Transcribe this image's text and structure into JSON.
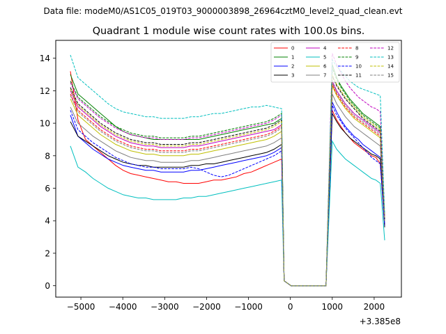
{
  "header": {
    "data_file": "Data file: modeM0/AS1C05_019T03_9000003898_26964cztM0_level2_quad_clean.evt"
  },
  "chart_data": {
    "type": "line",
    "title": "Quadrant 1 module wise count rates with 100.0s bins.",
    "xlabel": "",
    "ylabel": "",
    "x_offset_label": "+3.385e8",
    "xlim": [
      -5600,
      2650
    ],
    "ylim": [
      -0.7,
      15.1
    ],
    "xticks": [
      -5000,
      -4000,
      -3000,
      -2000,
      -1000,
      0,
      1000,
      2000
    ],
    "xtick_labels": [
      "−5000",
      "−4000",
      "−3000",
      "−2000",
      "−1000",
      "0",
      "1000",
      "2000"
    ],
    "yticks": [
      0,
      2,
      4,
      6,
      8,
      10,
      12,
      14
    ],
    "ytick_labels": [
      "0",
      "2",
      "4",
      "6",
      "8",
      "10",
      "12",
      "14"
    ],
    "grid": false,
    "legend_position": "top-right",
    "series": [
      {
        "name": "0",
        "color": "#ff0000",
        "dash": "solid",
        "pre": [
          13.2,
          10.2,
          9.0,
          8.6,
          8.2,
          7.8,
          7.4,
          7.1,
          6.9,
          6.8,
          6.7,
          6.6,
          6.5,
          6.4,
          6.4,
          6.3,
          6.3,
          6.3,
          6.4,
          6.5,
          6.5,
          6.6,
          6.7,
          6.9,
          7.0,
          7.2,
          7.4,
          7.6,
          7.8
        ],
        "post": [
          10.8,
          10.2,
          9.8,
          9.4,
          9.1,
          8.8,
          8.6,
          8.4,
          8.2,
          8.0,
          7.9,
          7.5,
          3.7
        ]
      },
      {
        "name": "1",
        "color": "#008000",
        "dash": "solid",
        "pre": [
          13.0,
          11.8,
          11.4,
          11.0,
          10.6,
          10.2,
          9.8,
          9.5,
          9.3,
          9.2,
          9.1,
          9.0,
          9.0,
          9.0,
          9.0,
          9.0,
          9.0,
          9.0,
          9.1,
          9.2,
          9.3,
          9.4,
          9.5,
          9.6,
          9.7,
          9.8,
          9.9,
          10.0,
          10.3
        ],
        "post": [
          13.6,
          12.8,
          12.3,
          11.9,
          11.5,
          11.2,
          10.9,
          10.6,
          10.4,
          10.2,
          10.0,
          9.8,
          4.2
        ]
      },
      {
        "name": "2",
        "color": "#0000ff",
        "dash": "solid",
        "pre": [
          10.5,
          9.2,
          8.8,
          8.4,
          8.1,
          7.8,
          7.6,
          7.4,
          7.3,
          7.2,
          7.1,
          7.1,
          7.0,
          7.0,
          7.0,
          7.0,
          7.1,
          7.1,
          7.2,
          7.3,
          7.4,
          7.5,
          7.6,
          7.7,
          7.8,
          7.9,
          8.0,
          8.2,
          8.5
        ],
        "post": [
          11.3,
          10.7,
          10.2,
          9.8,
          9.5,
          9.2,
          9.0,
          8.7,
          8.5,
          8.3,
          8.1,
          7.9,
          3.8
        ]
      },
      {
        "name": "3",
        "color": "#000000",
        "dash": "solid",
        "pre": [
          10.1,
          9.2,
          8.9,
          8.6,
          8.3,
          8.0,
          7.8,
          7.6,
          7.5,
          7.4,
          7.4,
          7.3,
          7.3,
          7.3,
          7.3,
          7.3,
          7.4,
          7.4,
          7.5,
          7.5,
          7.6,
          7.7,
          7.8,
          7.9,
          8.0,
          8.1,
          8.2,
          8.4,
          8.7
        ],
        "post": [
          10.6,
          10.1,
          9.7,
          9.4,
          9.1,
          8.9,
          8.7,
          8.5,
          8.3,
          8.1,
          8.0,
          7.8,
          3.6
        ]
      },
      {
        "name": "4",
        "color": "#bf00bf",
        "dash": "solid",
        "pre": [
          12.0,
          11.0,
          10.6,
          10.2,
          9.8,
          9.5,
          9.2,
          9.0,
          8.8,
          8.7,
          8.6,
          8.6,
          8.5,
          8.5,
          8.5,
          8.5,
          8.6,
          8.6,
          8.7,
          8.8,
          8.9,
          9.0,
          9.1,
          9.2,
          9.3,
          9.4,
          9.5,
          9.6,
          9.9
        ],
        "post": [
          12.6,
          12.0,
          11.6,
          11.2,
          10.9,
          10.6,
          10.4,
          10.2,
          10.0,
          9.8,
          9.6,
          9.4,
          4.1
        ]
      },
      {
        "name": "5",
        "color": "#00bfbf",
        "dash": "solid",
        "pre": [
          8.6,
          7.3,
          7.0,
          6.6,
          6.3,
          6.0,
          5.8,
          5.6,
          5.5,
          5.4,
          5.4,
          5.3,
          5.3,
          5.3,
          5.3,
          5.4,
          5.4,
          5.5,
          5.5,
          5.6,
          5.7,
          5.8,
          5.9,
          6.0,
          6.1,
          6.2,
          6.3,
          6.4,
          6.5
        ],
        "post": [
          8.9,
          8.4,
          8.1,
          7.8,
          7.6,
          7.4,
          7.2,
          7.0,
          6.8,
          6.6,
          6.5,
          6.3,
          2.8
        ]
      },
      {
        "name": "6",
        "color": "#bfbf00",
        "dash": "solid",
        "pre": [
          11.5,
          10.5,
          10.1,
          9.7,
          9.3,
          9.0,
          8.7,
          8.5,
          8.3,
          8.2,
          8.1,
          8.1,
          8.0,
          8.0,
          8.0,
          8.0,
          8.1,
          8.1,
          8.2,
          8.3,
          8.4,
          8.5,
          8.6,
          8.7,
          8.8,
          8.9,
          9.0,
          9.2,
          9.5
        ],
        "post": [
          12.3,
          11.7,
          11.3,
          10.9,
          10.6,
          10.3,
          10.1,
          9.9,
          9.7,
          9.5,
          9.3,
          9.1,
          4.0
        ]
      },
      {
        "name": "7",
        "color": "#7f7f7f",
        "dash": "solid",
        "pre": [
          11.0,
          10.0,
          9.6,
          9.2,
          8.9,
          8.6,
          8.3,
          8.1,
          7.9,
          7.8,
          7.7,
          7.7,
          7.6,
          7.6,
          7.6,
          7.6,
          7.7,
          7.7,
          7.8,
          7.9,
          8.0,
          8.1,
          8.2,
          8.3,
          8.4,
          8.5,
          8.6,
          8.8,
          9.1
        ],
        "post": [
          11.8,
          11.2,
          10.8,
          10.4,
          10.1,
          9.8,
          9.6,
          9.4,
          9.2,
          9.0,
          8.8,
          8.6,
          3.9
        ]
      },
      {
        "name": "8",
        "color": "#ff0000",
        "dash": "dashed",
        "pre": [
          11.8,
          10.8,
          10.4,
          10.0,
          9.6,
          9.3,
          9.0,
          8.8,
          8.6,
          8.5,
          8.4,
          8.4,
          8.3,
          8.3,
          8.3,
          8.3,
          8.4,
          8.4,
          8.5,
          8.6,
          8.7,
          8.8,
          8.9,
          9.0,
          9.1,
          9.2,
          9.3,
          9.5,
          9.8
        ],
        "post": [
          12.4,
          11.8,
          11.4,
          11.0,
          10.7,
          10.4,
          10.2,
          10.0,
          9.8,
          9.6,
          9.4,
          9.2,
          4.1
        ]
      },
      {
        "name": "9",
        "color": "#008000",
        "dash": "dashed",
        "pre": [
          12.6,
          11.6,
          11.2,
          10.8,
          10.4,
          10.1,
          9.8,
          9.6,
          9.4,
          9.3,
          9.2,
          9.2,
          9.1,
          9.1,
          9.1,
          9.1,
          9.2,
          9.2,
          9.3,
          9.4,
          9.5,
          9.6,
          9.7,
          9.8,
          9.9,
          10.0,
          10.1,
          10.3,
          10.6
        ],
        "post": [
          13.4,
          12.7,
          12.2,
          11.8,
          11.4,
          11.1,
          10.8,
          10.5,
          10.3,
          10.1,
          9.9,
          9.7,
          4.2
        ]
      },
      {
        "name": "10",
        "color": "#0000ff",
        "dash": "dashed",
        "pre": [
          10.8,
          9.6,
          9.2,
          8.8,
          8.5,
          8.2,
          7.9,
          7.7,
          7.5,
          7.4,
          7.3,
          7.3,
          7.2,
          7.2,
          7.2,
          7.2,
          7.3,
          7.2,
          7.0,
          6.8,
          6.7,
          6.8,
          7.0,
          7.2,
          7.4,
          7.6,
          7.8,
          8.0,
          8.3
        ],
        "post": [
          11.1,
          10.5,
          10.1,
          9.7,
          9.4,
          9.1,
          8.8,
          8.5,
          8.2,
          7.9,
          7.7,
          7.5,
          3.7
        ]
      },
      {
        "name": "11",
        "color": "#000000",
        "dash": "dashed",
        "pre": [
          12.2,
          11.2,
          10.8,
          10.4,
          10.0,
          9.7,
          9.4,
          9.2,
          9.0,
          8.9,
          8.8,
          8.8,
          8.7,
          8.7,
          8.7,
          8.7,
          8.8,
          8.8,
          8.9,
          9.0,
          9.1,
          9.2,
          9.3,
          9.4,
          9.5,
          9.6,
          9.7,
          9.9,
          10.2
        ],
        "post": [
          12.9,
          12.3,
          11.9,
          11.5,
          11.2,
          10.9,
          10.6,
          10.3,
          10.1,
          9.9,
          9.7,
          9.5,
          4.1
        ]
      },
      {
        "name": "12",
        "color": "#bf00bf",
        "dash": "dashed",
        "pre": [
          12.5,
          11.5,
          11.1,
          10.7,
          10.3,
          10.0,
          9.7,
          9.5,
          9.3,
          9.2,
          9.1,
          9.1,
          9.0,
          9.0,
          9.0,
          9.0,
          9.1,
          9.1,
          9.2,
          9.3,
          9.4,
          9.5,
          9.6,
          9.7,
          9.8,
          9.9,
          10.0,
          10.2,
          10.5
        ],
        "post": [
          14.3,
          13.6,
          13.1,
          12.6,
          12.2,
          11.9,
          11.6,
          11.4,
          11.2,
          11.0,
          10.9,
          10.7,
          4.3
        ]
      },
      {
        "name": "13",
        "color": "#00bfbf",
        "dash": "dashed",
        "pre": [
          14.2,
          12.8,
          12.4,
          12.0,
          11.6,
          11.2,
          10.9,
          10.7,
          10.6,
          10.5,
          10.4,
          10.4,
          10.3,
          10.3,
          10.3,
          10.3,
          10.4,
          10.4,
          10.5,
          10.6,
          10.6,
          10.7,
          10.8,
          10.9,
          11.0,
          11.0,
          11.1,
          11.0,
          10.9
        ],
        "post": [
          13.9,
          13.5,
          13.2,
          12.9,
          12.6,
          12.4,
          12.2,
          12.1,
          12.0,
          11.9,
          11.8,
          11.7,
          4.4
        ]
      },
      {
        "name": "14",
        "color": "#bfbf00",
        "dash": "dashed",
        "pre": [
          12.1,
          11.1,
          10.7,
          10.3,
          9.9,
          9.6,
          9.3,
          9.1,
          8.9,
          8.8,
          8.7,
          8.7,
          8.6,
          8.6,
          8.6,
          8.6,
          8.7,
          8.7,
          8.8,
          8.9,
          9.0,
          9.1,
          9.2,
          9.3,
          9.4,
          9.5,
          9.6,
          9.8,
          10.1
        ],
        "post": [
          13.0,
          12.4,
          12.0,
          11.6,
          11.3,
          11.0,
          10.7,
          10.4,
          10.2,
          10.0,
          9.8,
          9.6,
          4.2
        ]
      },
      {
        "name": "15",
        "color": "#7f7f7f",
        "dash": "dashed",
        "pre": [
          11.7,
          10.7,
          10.3,
          9.9,
          9.5,
          9.2,
          8.9,
          8.7,
          8.5,
          8.4,
          8.3,
          8.3,
          8.2,
          8.2,
          8.2,
          8.2,
          8.3,
          8.3,
          8.4,
          8.5,
          8.6,
          8.7,
          8.8,
          8.9,
          9.0,
          9.1,
          9.2,
          9.4,
          9.7
        ],
        "post": [
          12.5,
          11.9,
          11.5,
          11.1,
          10.8,
          10.5,
          10.3,
          10.1,
          9.9,
          9.7,
          9.5,
          9.3,
          4.0
        ]
      }
    ],
    "segments": {
      "pre_start_x": -5250,
      "pre_step_x": 180,
      "gap_values": [
        0.3,
        0.0,
        0.0,
        0.0,
        0.0,
        0.0,
        0.0
      ],
      "gap_start_x": -150,
      "gap_end_x": 850,
      "post_start_x": 1000,
      "post_end_x": 2250
    }
  }
}
